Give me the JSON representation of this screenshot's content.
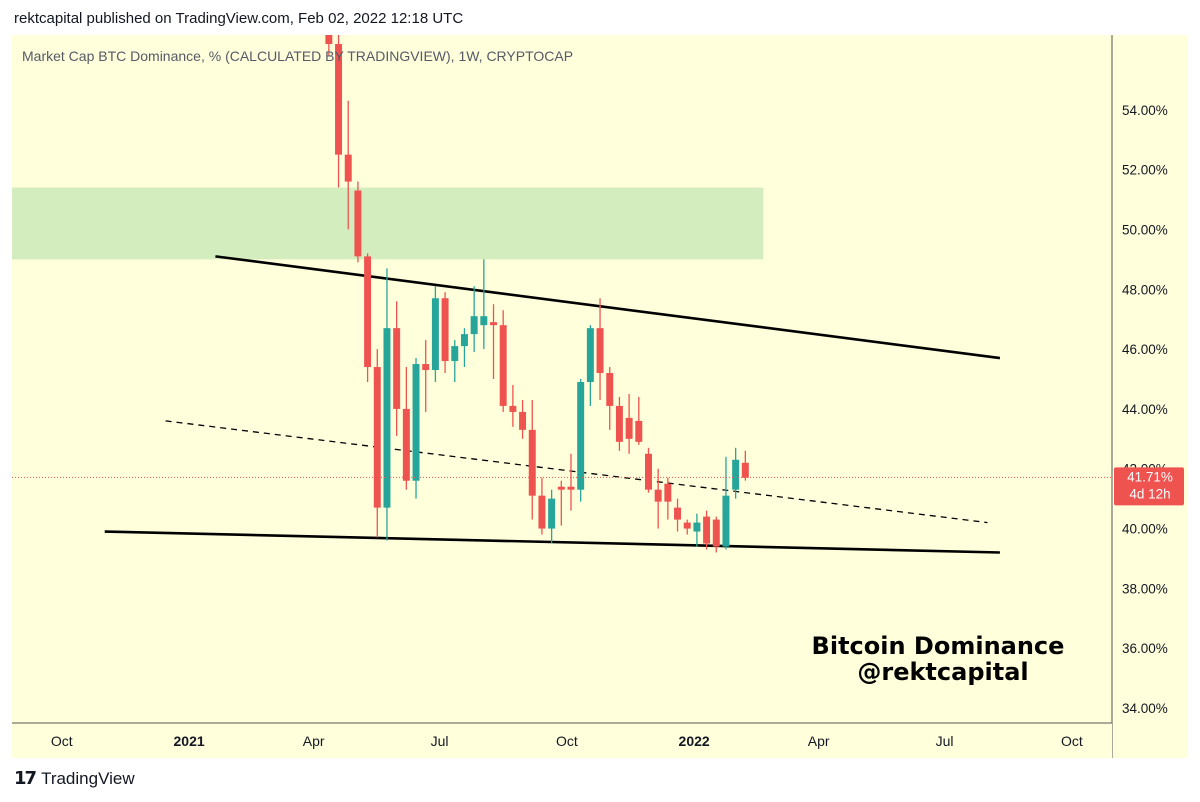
{
  "header": {
    "published_line": "rektcapital published on TradingView.com, Feb 02, 2022 12:18 UTC"
  },
  "footer": {
    "logo_icon": "tradingview-logo-icon",
    "brand": "TradingView"
  },
  "colors": {
    "background": "#ffffdc",
    "up": "#26a69a",
    "down": "#ef5350",
    "zone": "#d4edbe",
    "trendline": "#000000",
    "price_line": "#ef5350"
  },
  "chart_data": {
    "type": "candlestick",
    "title": "Market Cap BTC Dominance, % (CALCULATED BY TRADINGVIEW), 1W, CRYPTOCAP",
    "annotation": [
      "Bitcoin Dominance",
      "@rektcapital"
    ],
    "y_axis": {
      "side": "right",
      "ylim": [
        33.5,
        56.5
      ],
      "ticks": [
        34,
        36,
        38,
        40,
        42,
        44,
        46,
        48,
        50,
        52,
        54
      ],
      "tick_labels": [
        "34.00%",
        "36.00%",
        "38.00%",
        "40.00%",
        "42.00%",
        "44.00%",
        "46.00%",
        "48.00%",
        "50.00%",
        "52.00%",
        "54.00%"
      ]
    },
    "x_axis": {
      "range": [
        "2020-08-26",
        "2022-10-30"
      ],
      "ticks": [
        {
          "date": "2020-10-01",
          "label": "Oct",
          "bold": false
        },
        {
          "date": "2021-01-01",
          "label": "2021",
          "bold": true
        },
        {
          "date": "2021-04-01",
          "label": "Apr",
          "bold": false
        },
        {
          "date": "2021-07-01",
          "label": "Jul",
          "bold": false
        },
        {
          "date": "2021-10-01",
          "label": "Oct",
          "bold": false
        },
        {
          "date": "2022-01-01",
          "label": "2022",
          "bold": true
        },
        {
          "date": "2022-04-01",
          "label": "Apr",
          "bold": false
        },
        {
          "date": "2022-07-01",
          "label": "Jul",
          "bold": false
        },
        {
          "date": "2022-10-01",
          "label": "Oct",
          "bold": false
        }
      ]
    },
    "candles": [
      {
        "date": "2021-04-12",
        "o": 56.6,
        "h": 57.0,
        "l": 55.8,
        "c": 56.2
      },
      {
        "date": "2021-04-19",
        "o": 56.2,
        "h": 56.7,
        "l": 51.4,
        "c": 52.5
      },
      {
        "date": "2021-04-26",
        "o": 52.5,
        "h": 54.3,
        "l": 50.0,
        "c": 51.6
      },
      {
        "date": "2021-05-03",
        "o": 51.3,
        "h": 51.6,
        "l": 48.9,
        "c": 49.1
      },
      {
        "date": "2021-05-10",
        "o": 49.1,
        "h": 49.2,
        "l": 44.9,
        "c": 45.4
      },
      {
        "date": "2021-05-17",
        "o": 45.4,
        "h": 46.0,
        "l": 39.7,
        "c": 40.7
      },
      {
        "date": "2021-05-24",
        "o": 40.7,
        "h": 48.7,
        "l": 39.6,
        "c": 46.7
      },
      {
        "date": "2021-05-31",
        "o": 46.7,
        "h": 47.6,
        "l": 43.1,
        "c": 44.0
      },
      {
        "date": "2021-06-07",
        "o": 44.0,
        "h": 45.4,
        "l": 41.3,
        "c": 41.6
      },
      {
        "date": "2021-06-14",
        "o": 41.6,
        "h": 45.7,
        "l": 41.0,
        "c": 45.5
      },
      {
        "date": "2021-06-21",
        "o": 45.5,
        "h": 46.3,
        "l": 43.9,
        "c": 45.3
      },
      {
        "date": "2021-06-28",
        "o": 45.3,
        "h": 48.1,
        "l": 44.9,
        "c": 47.7
      },
      {
        "date": "2021-07-05",
        "o": 47.7,
        "h": 47.9,
        "l": 45.2,
        "c": 45.6
      },
      {
        "date": "2021-07-12",
        "o": 45.6,
        "h": 46.3,
        "l": 44.9,
        "c": 46.1
      },
      {
        "date": "2021-07-19",
        "o": 46.1,
        "h": 46.7,
        "l": 45.4,
        "c": 46.5
      },
      {
        "date": "2021-07-26",
        "o": 46.5,
        "h": 48.1,
        "l": 45.9,
        "c": 47.1
      },
      {
        "date": "2021-08-02",
        "o": 46.8,
        "h": 49.0,
        "l": 46.0,
        "c": 47.1
      },
      {
        "date": "2021-08-09",
        "o": 46.9,
        "h": 47.5,
        "l": 45.0,
        "c": 46.8
      },
      {
        "date": "2021-08-16",
        "o": 46.8,
        "h": 47.3,
        "l": 43.9,
        "c": 44.1
      },
      {
        "date": "2021-08-23",
        "o": 44.1,
        "h": 44.8,
        "l": 43.4,
        "c": 43.9
      },
      {
        "date": "2021-08-30",
        "o": 43.9,
        "h": 44.3,
        "l": 43.0,
        "c": 43.3
      },
      {
        "date": "2021-09-06",
        "o": 43.3,
        "h": 44.3,
        "l": 40.3,
        "c": 41.1
      },
      {
        "date": "2021-09-13",
        "o": 41.1,
        "h": 41.7,
        "l": 39.8,
        "c": 40.0
      },
      {
        "date": "2021-09-20",
        "o": 40.0,
        "h": 41.3,
        "l": 39.5,
        "c": 41.0
      },
      {
        "date": "2021-09-27",
        "o": 41.4,
        "h": 41.6,
        "l": 40.1,
        "c": 41.3
      },
      {
        "date": "2021-10-04",
        "o": 41.4,
        "h": 42.5,
        "l": 40.6,
        "c": 41.3
      },
      {
        "date": "2021-10-11",
        "o": 41.3,
        "h": 45.0,
        "l": 40.9,
        "c": 44.9
      },
      {
        "date": "2021-10-18",
        "o": 44.9,
        "h": 46.8,
        "l": 44.1,
        "c": 46.7
      },
      {
        "date": "2021-10-25",
        "o": 46.7,
        "h": 47.7,
        "l": 44.3,
        "c": 45.2
      },
      {
        "date": "2021-11-01",
        "o": 45.2,
        "h": 45.4,
        "l": 43.3,
        "c": 44.1
      },
      {
        "date": "2021-11-08",
        "o": 44.1,
        "h": 44.4,
        "l": 42.6,
        "c": 42.9
      },
      {
        "date": "2021-11-15",
        "o": 43.7,
        "h": 44.5,
        "l": 42.5,
        "c": 43.0
      },
      {
        "date": "2021-11-22",
        "o": 43.6,
        "h": 44.4,
        "l": 42.8,
        "c": 42.9
      },
      {
        "date": "2021-11-29",
        "o": 42.5,
        "h": 42.7,
        "l": 41.2,
        "c": 41.3
      },
      {
        "date": "2021-12-06",
        "o": 41.3,
        "h": 42.0,
        "l": 40.0,
        "c": 40.9
      },
      {
        "date": "2021-12-13",
        "o": 41.5,
        "h": 41.7,
        "l": 40.3,
        "c": 40.9
      },
      {
        "date": "2021-12-20",
        "o": 40.7,
        "h": 41.0,
        "l": 39.9,
        "c": 40.3
      },
      {
        "date": "2021-12-27",
        "o": 40.2,
        "h": 40.3,
        "l": 39.8,
        "c": 40.0
      },
      {
        "date": "2022-01-03",
        "o": 39.9,
        "h": 40.5,
        "l": 39.4,
        "c": 40.2
      },
      {
        "date": "2022-01-10",
        "o": 40.4,
        "h": 40.6,
        "l": 39.3,
        "c": 39.5
      },
      {
        "date": "2022-01-17",
        "o": 40.3,
        "h": 40.4,
        "l": 39.2,
        "c": 39.4
      },
      {
        "date": "2022-01-24",
        "o": 39.4,
        "h": 42.4,
        "l": 39.3,
        "c": 41.1
      },
      {
        "date": "2022-01-31",
        "o": 41.3,
        "h": 42.7,
        "l": 41.0,
        "c": 42.3
      },
      {
        "date": "2022-02-07",
        "o": 42.2,
        "h": 42.6,
        "l": 41.6,
        "c": 41.7
      }
    ],
    "zones": [
      {
        "from_date": "2020-08-26",
        "to_date": "2022-02-20",
        "from_value": 49.0,
        "to_value": 51.4
      }
    ],
    "trendlines": [
      {
        "style": "solid",
        "from_date": "2021-01-20",
        "from_value": 49.1,
        "to_date": "2022-08-10",
        "to_value": 45.7
      },
      {
        "style": "solid",
        "from_date": "2020-11-01",
        "from_value": 39.9,
        "to_date": "2022-08-10",
        "to_value": 39.2
      },
      {
        "style": "dashed",
        "from_date": "2020-12-15",
        "from_value": 43.6,
        "to_date": "2022-08-01",
        "to_value": 40.2
      }
    ],
    "last_price": {
      "value": 41.71,
      "label": "41.71%",
      "countdown": "4d 12h"
    }
  }
}
